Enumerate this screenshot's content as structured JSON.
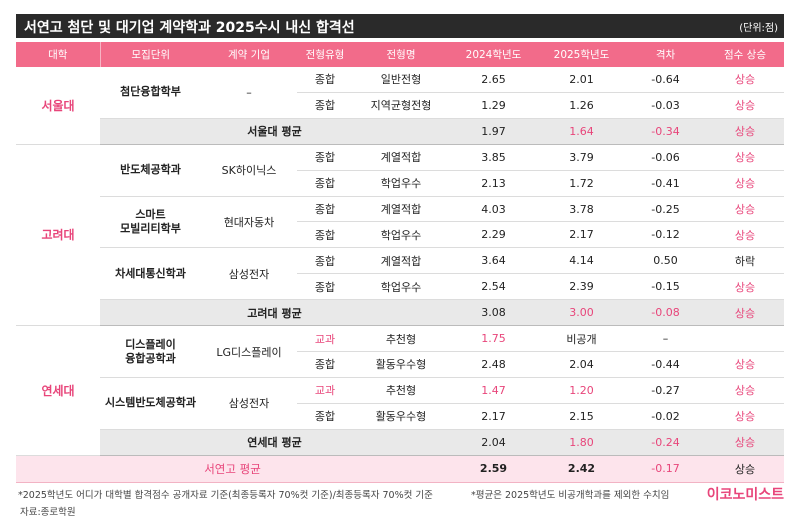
{
  "title": "서연고 첨단 및 대기업 계약학과 2025수시 내신 합격선",
  "unit": "(단위:점)",
  "headers": [
    "대학",
    "모집단위",
    "계약 기업",
    "전형유형",
    "전형명",
    "2024학년도",
    "2025학년도",
    "격차",
    "점수 상승"
  ],
  "rows": [
    {
      "univ": "서울대",
      "dept": "첨단융합학부",
      "company": "–",
      "type": "종합",
      "name": "일반전형",
      "y2024": "2.65",
      "y2025": "2.01",
      "gap": "-0.64",
      "trend": "상승"
    },
    {
      "type": "종합",
      "name": "지역균형전형",
      "y2024": "1.29",
      "y2025": "1.26",
      "gap": "-0.03",
      "trend": "상승"
    },
    {
      "avg": "서울대 평균",
      "y2024": "1.97",
      "y2025": "1.64",
      "gap": "-0.34",
      "trend": "상승"
    },
    {
      "univ": "고려대",
      "dept": "반도체공학과",
      "company": "SK하이닉스",
      "type": "종합",
      "name": "계열적합",
      "y2024": "3.85",
      "y2025": "3.79",
      "gap": "-0.06",
      "trend": "상승"
    },
    {
      "type": "종합",
      "name": "학업우수",
      "y2024": "2.13",
      "y2025": "1.72",
      "gap": "-0.41",
      "trend": "상승"
    },
    {
      "dept_line1": "스마트",
      "dept_line2": "모빌리티학부",
      "company": "현대자동차",
      "type": "종합",
      "name": "계열적합",
      "y2024": "4.03",
      "y2025": "3.78",
      "gap": "-0.25",
      "trend": "상승"
    },
    {
      "type": "종합",
      "name": "학업우수",
      "y2024": "2.29",
      "y2025": "2.17",
      "gap": "-0.12",
      "trend": "상승"
    },
    {
      "dept": "차세대통신학과",
      "company": "삼성전자",
      "type": "종합",
      "name": "계열적합",
      "y2024": "3.64",
      "y2025": "4.14",
      "gap": "0.50",
      "trend": "하락"
    },
    {
      "type": "종합",
      "name": "학업우수",
      "y2024": "2.54",
      "y2025": "2.39",
      "gap": "-0.15",
      "trend": "상승"
    },
    {
      "avg": "고려대 평균",
      "y2024": "3.08",
      "y2025": "3.00",
      "gap": "-0.08",
      "trend": "상승"
    },
    {
      "univ": "연세대",
      "dept_line1": "디스플레이",
      "dept_line2": "융합공학과",
      "company": "LG디스플레이",
      "type": "교과",
      "name": "추천형",
      "y2024": "1.75",
      "y2025": "비공개",
      "gap": "–",
      "trend": ""
    },
    {
      "type": "종합",
      "name": "활동우수형",
      "y2024": "2.48",
      "y2025": "2.04",
      "gap": "-0.44",
      "trend": "상승"
    },
    {
      "dept": "시스템반도체공학과",
      "company": "삼성전자",
      "type": "교과",
      "name": "추천형",
      "y2024": "1.47",
      "y2025": "1.20",
      "gap": "-0.27",
      "trend": "상승"
    },
    {
      "type": "종합",
      "name": "활동우수형",
      "y2024": "2.17",
      "y2025": "2.15",
      "gap": "-0.02",
      "trend": "상승"
    },
    {
      "avg": "연세대 평균",
      "y2024": "2.04",
      "y2025": "1.80",
      "gap": "-0.24",
      "trend": "상승"
    },
    {
      "total": "서연고 평균",
      "y2024": "2.59",
      "y2025": "2.42",
      "gap": "-0.17",
      "trend": "상승"
    }
  ],
  "footnote1": "*2025학년도 어디가 대학별 합격점수 공개자료 기준(최종등록자 70%컷 기준)/최종등록자 70%컷 기준",
  "footnote2": "*평균은 2025학년도 비공개학과를 제외한 수치임",
  "source": "자료:종로학원",
  "brand": "이코노미스트",
  "colors": {
    "accent": "#e8457a",
    "header": "#f26b8a",
    "title_bg": "#2a2a2a",
    "avg_bg": "#e9e9e9",
    "total_bg": "#fde4ec"
  }
}
